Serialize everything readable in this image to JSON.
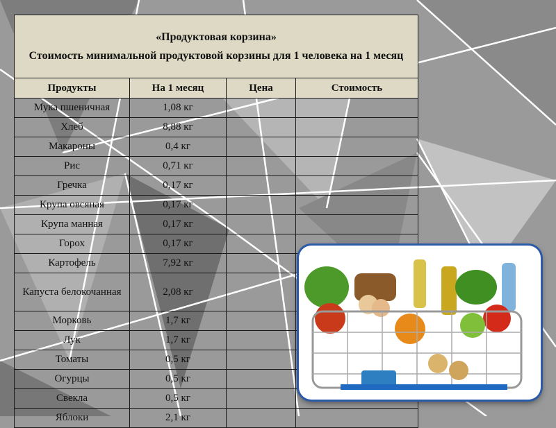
{
  "title": {
    "line1": "«Продуктовая корзина»",
    "line2": "Стоимость минимальной продуктовой корзины для 1 человека на 1 месяц"
  },
  "columns": [
    "Продукты",
    "На 1 месяц",
    "Цена",
    "Стоимость"
  ],
  "rows": [
    {
      "product": "Мука пшеничная",
      "amount": "1,08 кг"
    },
    {
      "product": "Хлеб",
      "amount": "8,88 кг"
    },
    {
      "product": "Макароны",
      "amount": "0,4 кг"
    },
    {
      "product": "Рис",
      "amount": "0,71 кг"
    },
    {
      "product": "Гречка",
      "amount": "0,17 кг"
    },
    {
      "product": "Крупа овсяная",
      "amount": "0,17 кг"
    },
    {
      "product": "Крупа манная",
      "amount": "0,17 кг"
    },
    {
      "product": "Горох",
      "amount": "0,17 кг"
    },
    {
      "product": "Картофель",
      "amount": "7,92 кг"
    },
    {
      "product": "Капуста белокочанная",
      "amount": "2,08 кг"
    },
    {
      "product": "Морковь",
      "amount": "1,7 кг"
    },
    {
      "product": "Лук",
      "amount": "1,7 кг"
    },
    {
      "product": "Томаты",
      "amount": "0,5 кг"
    },
    {
      "product": "Огурцы",
      "amount": "0,5 кг"
    },
    {
      "product": "Свекла",
      "amount": "0,5 кг"
    },
    {
      "product": "Яблоки",
      "amount": "2,1 кг"
    }
  ],
  "colors": {
    "header_bg": "#ddd9c4",
    "frame": "#2a5aa8"
  }
}
